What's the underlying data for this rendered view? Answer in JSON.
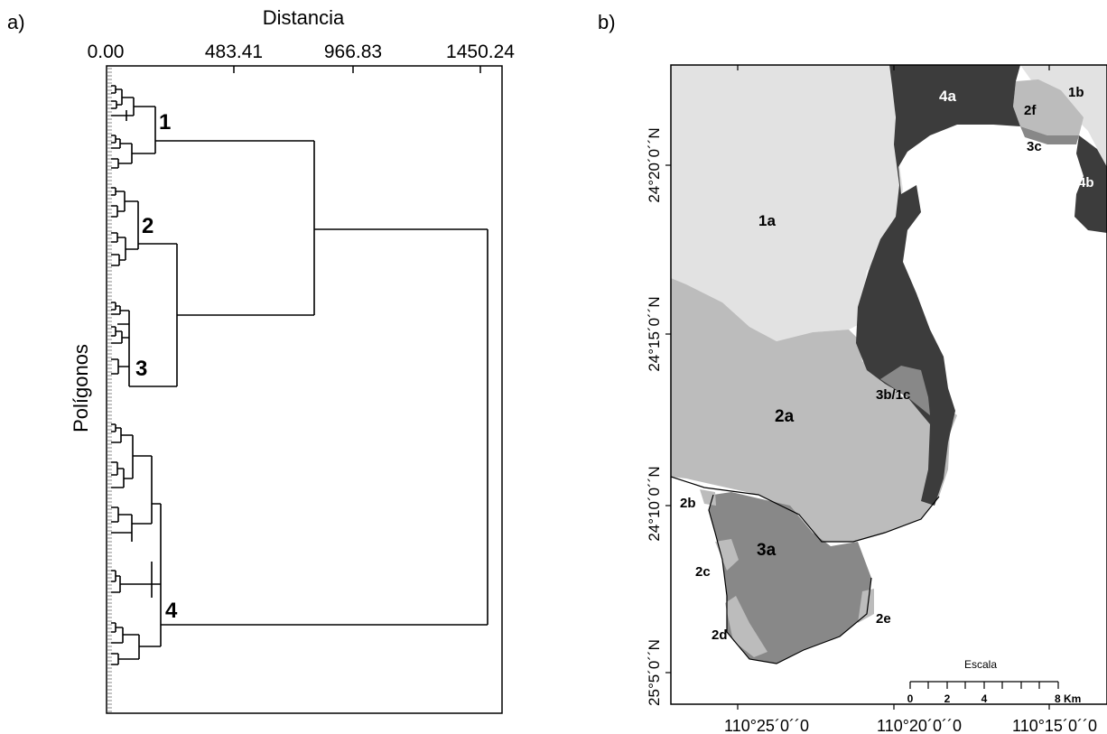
{
  "panels": {
    "a": "a)",
    "b": "b)"
  },
  "dendrogram": {
    "x_axis_title": "Distancia",
    "y_axis_title": "Polígonos",
    "tick_labels": [
      "0.00",
      "483.41",
      "966.83",
      "1450.24"
    ],
    "cluster_labels": [
      "1",
      "2",
      "3",
      "4"
    ]
  },
  "map": {
    "zone_labels": [
      "1a",
      "1b",
      "2a",
      "2b",
      "2c",
      "2d",
      "2e",
      "2f",
      "3a",
      "3b/1c",
      "3c",
      "4a",
      "4b"
    ],
    "lat_labels": [
      "24°20´0´´N",
      "24°15´0´´N",
      "24°10´0´´N",
      "25°5´0´´N"
    ],
    "lon_labels": [
      "110°25´0´´0",
      "110°20´0´´0",
      "110°15´0´´0"
    ],
    "scale": {
      "title": "Escala",
      "ticks": [
        "0",
        "2",
        "4",
        "8 Km"
      ]
    },
    "colors": {
      "zone1": "#e2e2e2",
      "zone2": "#bcbcbc",
      "zone3": "#888888",
      "zone4": "#3c3c3c",
      "land": "#ffffff"
    }
  }
}
